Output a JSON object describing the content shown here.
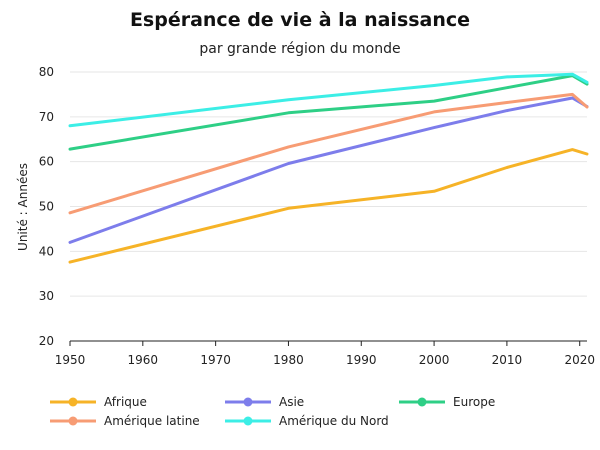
{
  "chart_data": {
    "type": "line",
    "title": "Espérance de vie à la naissance",
    "subtitle": "par grande région du monde",
    "xlabel": "",
    "ylabel": "Unité : Années",
    "xlim": [
      1950,
      2021
    ],
    "ylim": [
      20,
      80
    ],
    "xticks": [
      1950,
      1960,
      1970,
      1980,
      1990,
      2000,
      2010,
      2020
    ],
    "yticks": [
      20,
      30,
      40,
      50,
      60,
      70,
      80
    ],
    "grid": true,
    "legend_position": "bottom",
    "x": [
      1950,
      1980,
      2000,
      2010,
      2019,
      2021
    ],
    "series": [
      {
        "name": "Afrique",
        "color": "#F6B327",
        "values": [
          37.6,
          49.6,
          53.4,
          58.7,
          62.7,
          61.7
        ]
      },
      {
        "name": "Asie",
        "color": "#7D7DEB",
        "values": [
          42.0,
          59.6,
          67.6,
          71.4,
          74.2,
          72.3
        ]
      },
      {
        "name": "Europe",
        "color": "#2ECF86",
        "values": [
          62.8,
          70.9,
          73.5,
          76.5,
          79.2,
          77.3
        ]
      },
      {
        "name": "Amérique latine",
        "color": "#F79C74",
        "values": [
          48.6,
          63.3,
          71.1,
          73.2,
          75.0,
          72.2
        ]
      },
      {
        "name": "Amérique du Nord",
        "color": "#3CEEE6",
        "values": [
          68.0,
          73.8,
          77.0,
          78.9,
          79.5,
          77.7
        ]
      }
    ]
  }
}
